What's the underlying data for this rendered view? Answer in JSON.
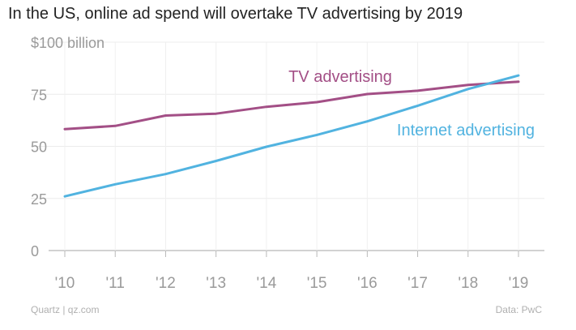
{
  "chart_data": {
    "type": "line",
    "title": "In the US, online ad spend will overtake TV advertising by 2019",
    "xlabel": "",
    "ylabel": "",
    "x": [
      "'10",
      "'11",
      "'12",
      "'13",
      "'14",
      "'15",
      "'16",
      "'17",
      "'18",
      "'19"
    ],
    "ylim": [
      0,
      100
    ],
    "yticks": [
      {
        "value": 0,
        "label": "0"
      },
      {
        "value": 25,
        "label": "25"
      },
      {
        "value": 50,
        "label": "50"
      },
      {
        "value": 75,
        "label": "75"
      },
      {
        "value": 100,
        "label": "$100 billion"
      }
    ],
    "grid": true,
    "series": [
      {
        "name": "TV advertising",
        "color": "#a34f86",
        "values": [
          58.3,
          59.8,
          64.8,
          65.7,
          69.0,
          71.2,
          75.1,
          76.7,
          79.5,
          81.0
        ]
      },
      {
        "name": "Internet advertising",
        "color": "#51b3e0",
        "values": [
          26.0,
          31.8,
          36.7,
          43.0,
          49.8,
          55.5,
          62.0,
          69.5,
          77.5,
          84.0
        ]
      }
    ]
  },
  "footer": {
    "source_left": "Quartz | qz.com",
    "source_right": "Data: PwC"
  }
}
